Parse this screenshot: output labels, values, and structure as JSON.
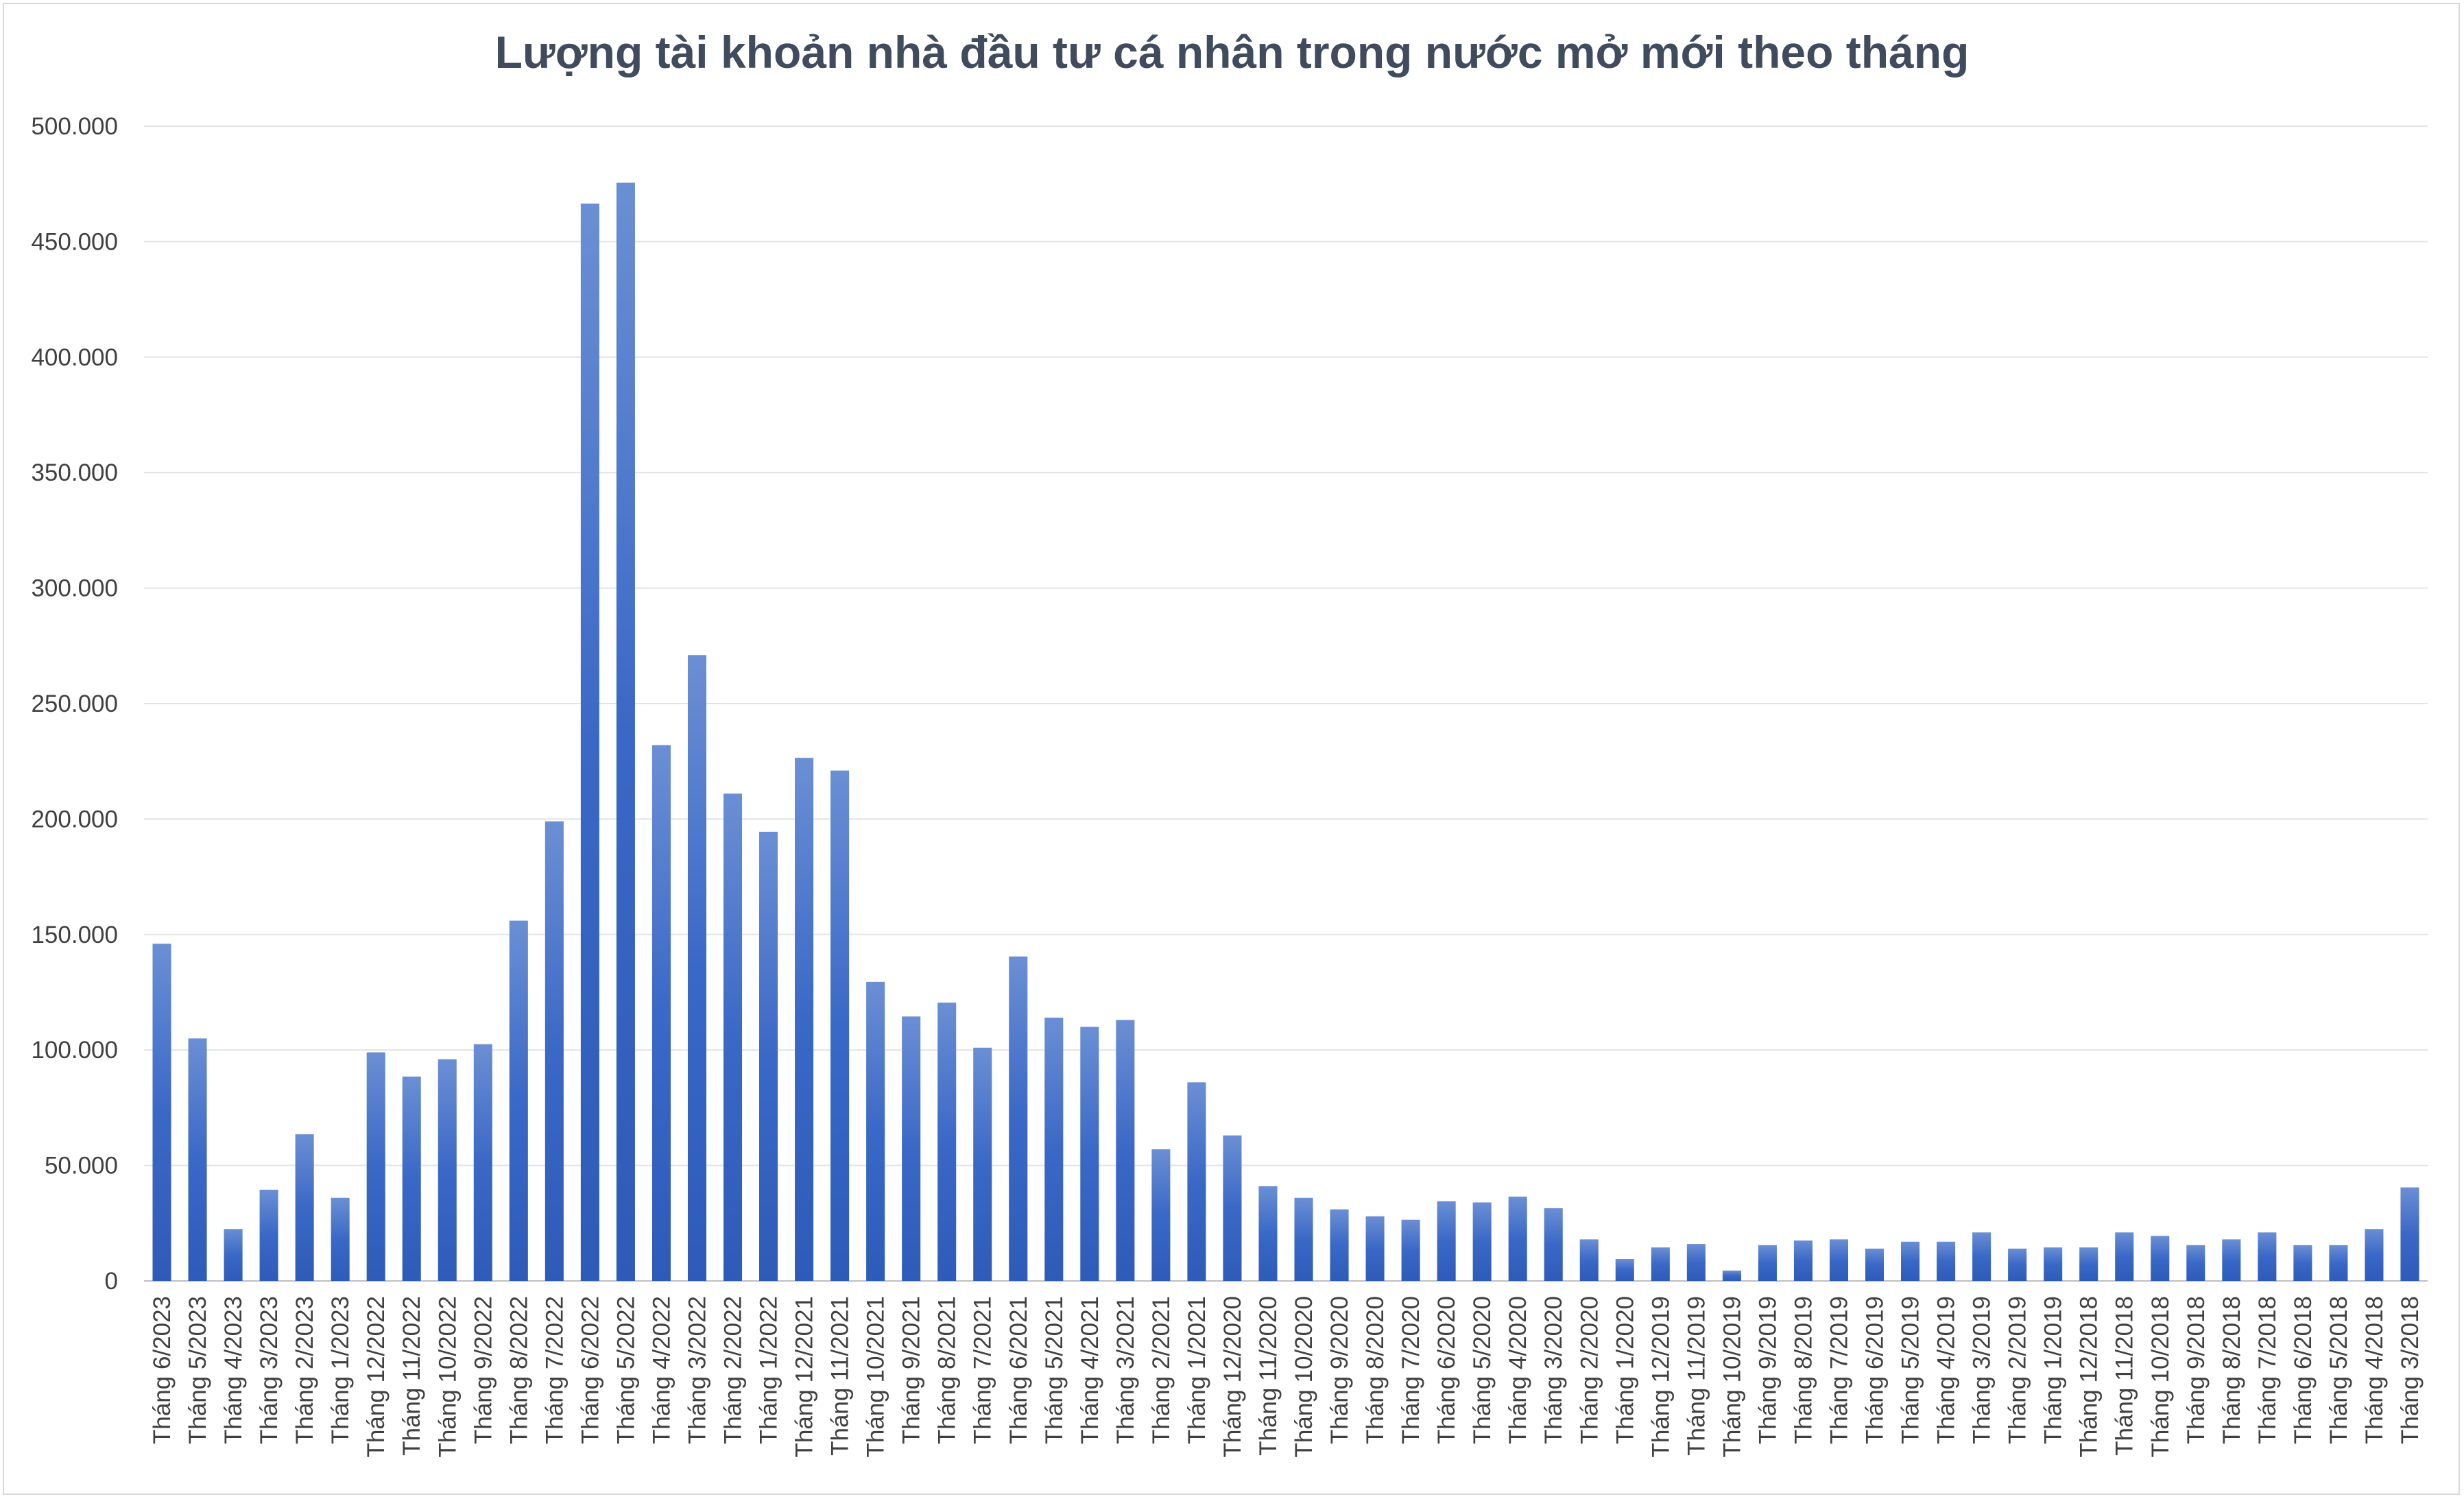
{
  "chart_data": {
    "type": "bar",
    "title": "Lượng tài khoản nhà đầu tư cá nhân trong nước mở mới theo tháng",
    "xlabel": "",
    "ylabel": "",
    "ylim": [
      0,
      500000
    ],
    "yticks": [
      0,
      50000,
      100000,
      150000,
      200000,
      250000,
      300000,
      350000,
      400000,
      450000,
      500000
    ],
    "ytick_labels": [
      "0",
      "50.000",
      "100.000",
      "150.000",
      "200.000",
      "250.000",
      "300.000",
      "350.000",
      "400.000",
      "450.000",
      "500.000"
    ],
    "grid": true,
    "bar_color": "#4472c4",
    "categories": [
      "Tháng 6/2023",
      "Tháng 5/2023",
      "Tháng 4/2023",
      "Tháng 3/2023",
      "Tháng 2/2023",
      "Tháng 1/2023",
      "Tháng 12/2022",
      "Tháng 11/2022",
      "Tháng 10/2022",
      "Tháng 9/2022",
      "Tháng 8/2022",
      "Tháng 7/2022",
      "Tháng 6/2022",
      "Tháng 5/2022",
      "Tháng 4/2022",
      "Tháng 3/2022",
      "Tháng 2/2022",
      "Tháng 1/2022",
      "Tháng 12/2021",
      "Tháng 11/2021",
      "Tháng 10/2021",
      "Tháng 9/2021",
      "Tháng 8/2021",
      "Tháng 7/2021",
      "Tháng 6/2021",
      "Tháng 5/2021",
      "Tháng 4/2021",
      "Tháng 3/2021",
      "Tháng 2/2021",
      "Tháng 1/2021",
      "Tháng 12/2020",
      "Tháng 11/2020",
      "Tháng 10/2020",
      "Tháng 9/2020",
      "Tháng 8/2020",
      "Tháng 7/2020",
      "Tháng 6/2020",
      "Tháng 5/2020",
      "Tháng 4/2020",
      "Tháng 3/2020",
      "Tháng 2/2020",
      "Tháng 1/2020",
      "Tháng 12/2019",
      "Tháng 11/2019",
      "Tháng 10/2019",
      "Tháng 9/2019",
      "Tháng 8/2019",
      "Tháng 7/2019",
      "Tháng 6/2019",
      "Tháng 5/2019",
      "Tháng 4/2019",
      "Tháng 3/2019",
      "Tháng 2/2019",
      "Tháng 1/2019",
      "Tháng 12/2018",
      "Tháng 11/2018",
      "Tháng 10/2018",
      "Tháng 9/2018",
      "Tháng 8/2018",
      "Tháng 7/2018",
      "Tháng 6/2018",
      "Tháng 5/2018",
      "Tháng 4/2018",
      "Tháng 3/2018"
    ],
    "values": [
      146000,
      105000,
      22500,
      39500,
      63500,
      36000,
      99000,
      88500,
      96000,
      102500,
      156000,
      199000,
      466500,
      475500,
      232000,
      271000,
      211000,
      194500,
      226500,
      221000,
      129500,
      114500,
      120500,
      101000,
      140500,
      114000,
      110000,
      113000,
      57000,
      86000,
      63000,
      41000,
      36000,
      31000,
      28000,
      26500,
      34500,
      34000,
      36500,
      31500,
      18000,
      9500,
      14500,
      16000,
      4500,
      15500,
      17500,
      18000,
      14000,
      17000,
      17000,
      21000,
      14000,
      14500,
      14500,
      21000,
      19500,
      15500,
      18000,
      21000,
      15500,
      15500,
      22500,
      40500
    ]
  }
}
